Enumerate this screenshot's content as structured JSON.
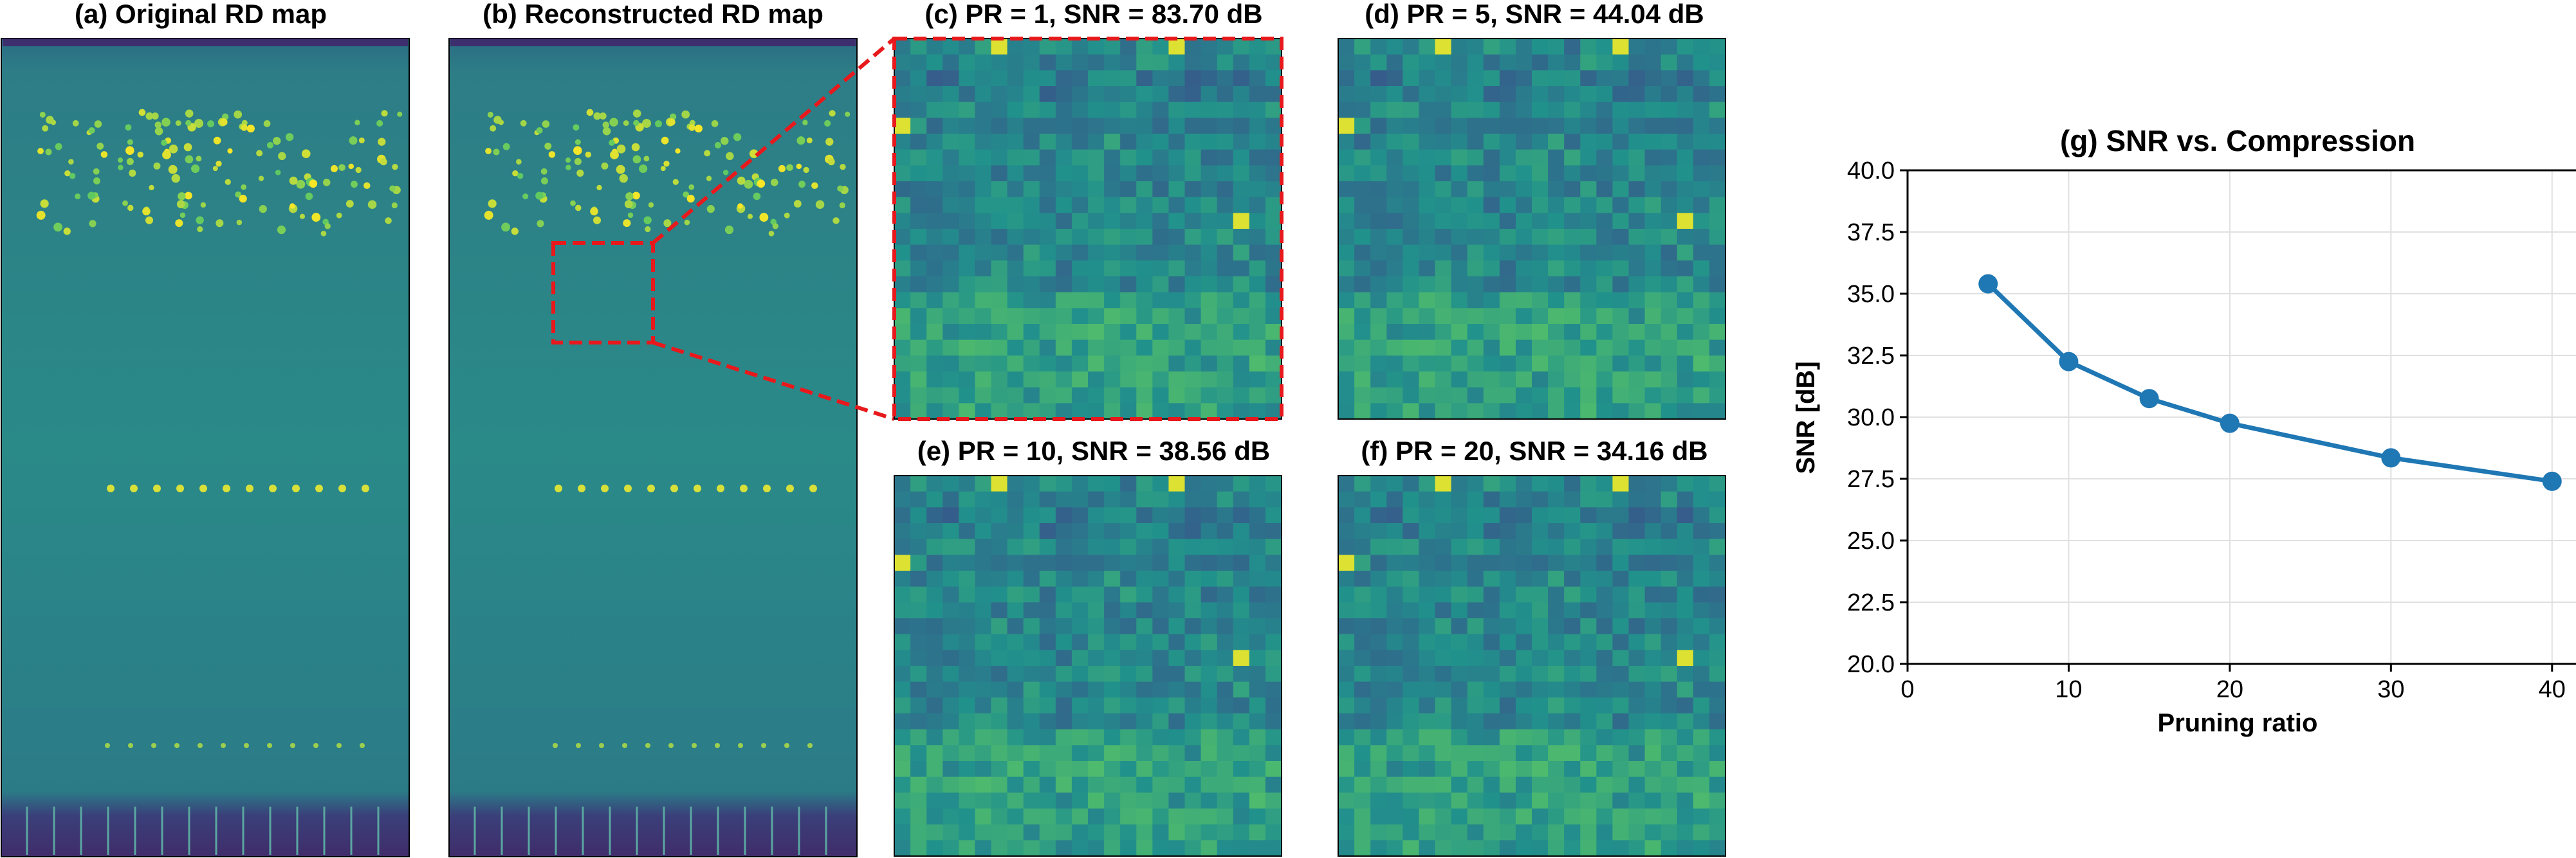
{
  "panels": {
    "a": {
      "title": "(a) Original RD map"
    },
    "b": {
      "title": "(b) Reconstructed RD map"
    },
    "c": {
      "title": "(c) PR = 1, SNR = 83.70 dB",
      "pr": 1,
      "snr_db": 83.7
    },
    "d": {
      "title": "(d) PR = 5, SNR = 44.04 dB",
      "pr": 5,
      "snr_db": 44.04
    },
    "e": {
      "title": "(e) PR = 10, SNR = 38.56 dB",
      "pr": 10,
      "snr_db": 38.56
    },
    "f": {
      "title": "(f) PR = 20, SNR = 34.16 dB",
      "pr": 20,
      "snr_db": 34.16
    }
  },
  "colors": {
    "series": "#1f77b4",
    "zoom_box": "#e8191c",
    "map_background": "#2b7a86",
    "map_dark": "#3b2f6e",
    "map_bright": "#c8dc3a"
  },
  "chart_data": {
    "type": "line",
    "title": "(g) SNR vs. Compression",
    "xlabel": "Pruning ratio",
    "ylabel": "SNR [dB]",
    "xlim": [
      0,
      45
    ],
    "ylim": [
      20.0,
      40.0
    ],
    "xticks": [
      0,
      10,
      20,
      30,
      40
    ],
    "yticks": [
      20.0,
      22.5,
      25.0,
      27.5,
      30.0,
      32.5,
      35.0,
      37.5,
      40.0
    ],
    "xtick_labels": [
      "0",
      "10",
      "20",
      "30",
      "40"
    ],
    "ytick_labels": [
      "20.0",
      "22.5",
      "25.0",
      "27.5",
      "30.0",
      "32.5",
      "35.0",
      "37.5",
      "40.0"
    ],
    "grid": true,
    "x": [
      5,
      10,
      15,
      20,
      30,
      40
    ],
    "y": [
      35.4,
      32.25,
      30.75,
      29.75,
      28.35,
      27.4
    ]
  }
}
